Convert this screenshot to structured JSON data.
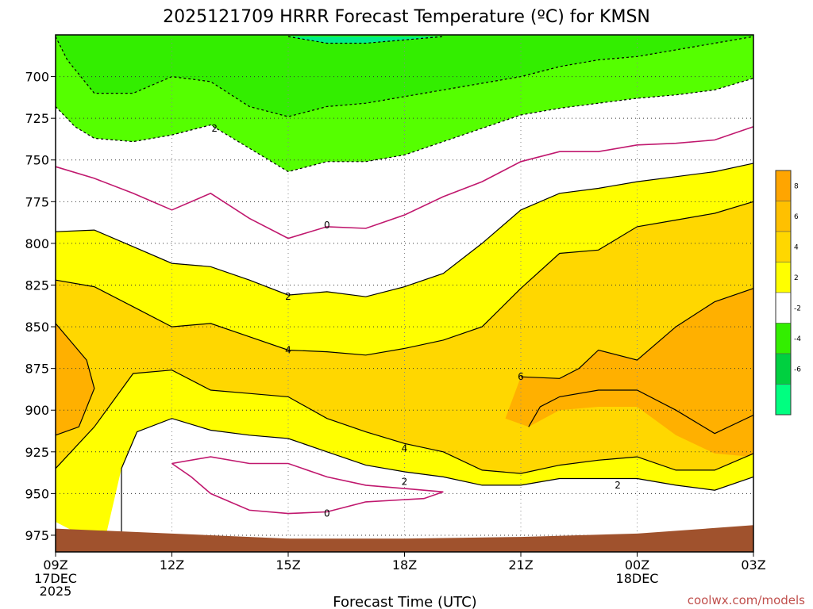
{
  "chart_data": {
    "type": "area",
    "title": "2025121709 HRRR Forecast Temperature (ºC) for KMSN",
    "xlabel": "Forecast Time (UTC)",
    "ylabel": "",
    "x_ticks": [
      "09Z",
      "12Z",
      "15Z",
      "18Z",
      "21Z",
      "00Z",
      "03Z"
    ],
    "x_tick_hours": [
      0,
      3,
      6,
      9,
      12,
      15,
      18
    ],
    "x_subticks": [
      {
        "hour": 0,
        "lines": [
          "17DEC",
          "2025"
        ]
      },
      {
        "hour": 15,
        "lines": [
          "18DEC"
        ]
      }
    ],
    "y_ticks": [
      700,
      725,
      750,
      775,
      800,
      825,
      850,
      875,
      900,
      925,
      950,
      975
    ],
    "ylim": [
      675,
      985
    ],
    "xlim": [
      0,
      18
    ],
    "grid": true,
    "colorbar": {
      "levels": [
        -8,
        -6,
        -4,
        -2,
        0,
        2,
        4,
        6,
        8,
        10
      ],
      "tick_labels": [
        "8",
        "6",
        "4",
        "2",
        "-2",
        "-4",
        "-6"
      ],
      "tick_values": [
        8,
        6,
        4,
        2,
        -2,
        -4,
        -6
      ],
      "colors": [
        "#00ff80",
        "#00e040",
        "#33ee00",
        "#66ff00",
        "#ffffff",
        "#ffff00",
        "#ffd700",
        "#ffc000",
        "#ffa500"
      ],
      "position": "right"
    },
    "fill_colors": {
      "below_zero_2": "#33ee00",
      "below_zero_4": "#55ff00",
      "coldest": "#00ee88",
      "zero_to_2": "#ffffff",
      "two_to_4": "#ffff00",
      "four_to_6": "#ffd700",
      "six_to_8": "#ffb000",
      "ground": "#a0522d",
      "zero_line": "#c0186e"
    },
    "contours": [
      {
        "level": -4,
        "points": [
          [
            6.0,
            676
          ],
          [
            7,
            680
          ],
          [
            8,
            680
          ],
          [
            9,
            678
          ],
          [
            10,
            676
          ]
        ]
      },
      {
        "level": -2,
        "points": [
          [
            0,
            676
          ],
          [
            0.3,
            690
          ],
          [
            1,
            710
          ],
          [
            2,
            710
          ],
          [
            3,
            700
          ],
          [
            4,
            703
          ],
          [
            5,
            718
          ],
          [
            6,
            724
          ],
          [
            7,
            718
          ],
          [
            8,
            716
          ],
          [
            9,
            712
          ],
          [
            10,
            708
          ],
          [
            11,
            704
          ],
          [
            12,
            700
          ],
          [
            13,
            694
          ],
          [
            14,
            690
          ],
          [
            15,
            688
          ],
          [
            16,
            684
          ],
          [
            17,
            680
          ],
          [
            18,
            676
          ]
        ]
      },
      {
        "level": -2,
        "points": [
          [
            0,
            718
          ],
          [
            0.5,
            730
          ],
          [
            1,
            737
          ],
          [
            2,
            739
          ],
          [
            3,
            735
          ],
          [
            4,
            729
          ],
          [
            5,
            743
          ],
          [
            6,
            757
          ],
          [
            7,
            751
          ],
          [
            8,
            751
          ],
          [
            9,
            747
          ],
          [
            10,
            739
          ],
          [
            11,
            731
          ],
          [
            12,
            723
          ],
          [
            13,
            719
          ],
          [
            14,
            716
          ],
          [
            15,
            713
          ],
          [
            16,
            711
          ],
          [
            17,
            708
          ],
          [
            18,
            701
          ]
        ]
      },
      {
        "level": 0,
        "points": [
          [
            0,
            754
          ],
          [
            1,
            761
          ],
          [
            2,
            770
          ],
          [
            3,
            780
          ],
          [
            4,
            770
          ],
          [
            5,
            785
          ],
          [
            6,
            797
          ],
          [
            7,
            790
          ],
          [
            8,
            791
          ],
          [
            9,
            783
          ],
          [
            10,
            772
          ],
          [
            11,
            763
          ],
          [
            12,
            751
          ],
          [
            13,
            745
          ],
          [
            14,
            745
          ],
          [
            15,
            741
          ],
          [
            16,
            740
          ],
          [
            17,
            738
          ],
          [
            18,
            730
          ]
        ]
      },
      {
        "level": 2,
        "points": [
          [
            0,
            793
          ],
          [
            1,
            792
          ],
          [
            2,
            802
          ],
          [
            3,
            812
          ],
          [
            4,
            814
          ],
          [
            5,
            822
          ],
          [
            6,
            831
          ],
          [
            7,
            829
          ],
          [
            8,
            832
          ],
          [
            9,
            826
          ],
          [
            10,
            818
          ],
          [
            11,
            800
          ],
          [
            12,
            780
          ],
          [
            13,
            770
          ],
          [
            14,
            767
          ],
          [
            15,
            763
          ],
          [
            16,
            760
          ],
          [
            17,
            757
          ],
          [
            18,
            752
          ]
        ]
      },
      {
        "level": 4,
        "points": [
          [
            0,
            822
          ],
          [
            1,
            826
          ],
          [
            2,
            838
          ],
          [
            3,
            850
          ],
          [
            4,
            848
          ],
          [
            5,
            856
          ],
          [
            6,
            864
          ],
          [
            7,
            865
          ],
          [
            8,
            867
          ],
          [
            9,
            863
          ],
          [
            10,
            858
          ],
          [
            11,
            850
          ],
          [
            12,
            827
          ],
          [
            13,
            806
          ],
          [
            14,
            804
          ],
          [
            15,
            790
          ],
          [
            16,
            786
          ],
          [
            17,
            782
          ],
          [
            18,
            775
          ]
        ]
      },
      {
        "level": 6,
        "points": [
          [
            12,
            880
          ],
          [
            13,
            881
          ],
          [
            13.5,
            875
          ],
          [
            14,
            864
          ],
          [
            15,
            870
          ],
          [
            16,
            850
          ],
          [
            17,
            835
          ],
          [
            18,
            827
          ]
        ]
      },
      {
        "level": 0,
        "points": [
          [
            3,
            932
          ],
          [
            4,
            928
          ],
          [
            5,
            932
          ],
          [
            6,
            932
          ],
          [
            7,
            940
          ],
          [
            8,
            945
          ],
          [
            9,
            947
          ],
          [
            10,
            949
          ],
          [
            9.5,
            953
          ],
          [
            8,
            955
          ],
          [
            7,
            961
          ],
          [
            6,
            962
          ],
          [
            5,
            960
          ],
          [
            4,
            950
          ],
          [
            3.5,
            940
          ],
          [
            3,
            932
          ]
        ]
      }
    ],
    "contour_labels": [
      {
        "text": "2",
        "x": 4.1,
        "y": 731
      },
      {
        "text": "0",
        "x": 7,
        "y": 789
      },
      {
        "text": "2",
        "x": 6,
        "y": 832
      },
      {
        "text": "4",
        "x": 6,
        "y": 864
      },
      {
        "text": "6",
        "x": 12,
        "y": 880
      },
      {
        "text": "4",
        "x": 9,
        "y": 923
      },
      {
        "text": "2",
        "x": 9,
        "y": 943
      },
      {
        "text": "2",
        "x": 14.5,
        "y": 945
      },
      {
        "text": "0",
        "x": 7,
        "y": 962
      }
    ],
    "credit": "coolwx.com/models"
  }
}
